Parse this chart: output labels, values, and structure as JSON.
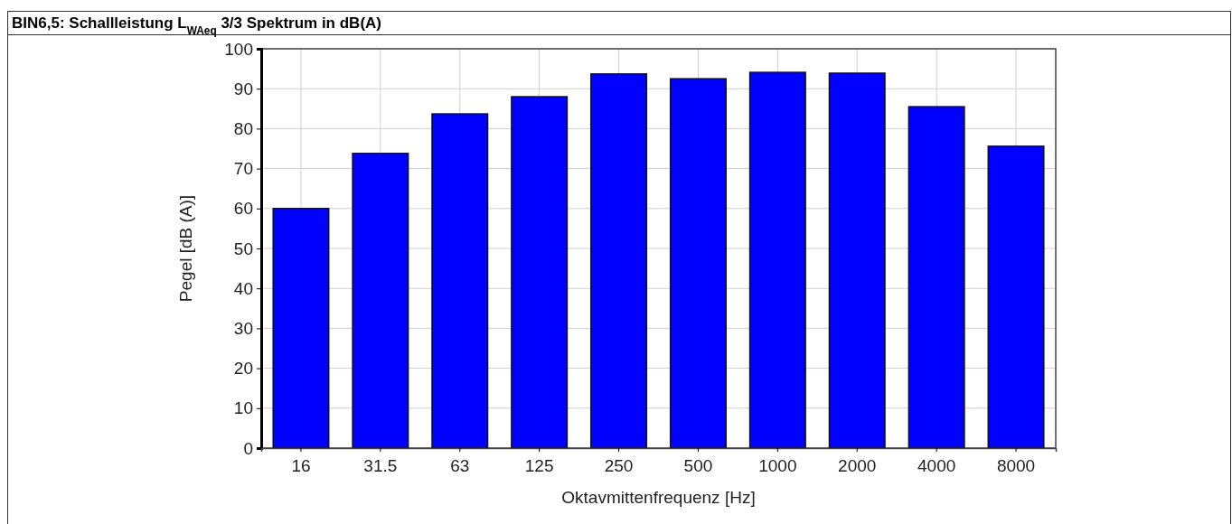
{
  "chart_data": {
    "type": "bar",
    "title": "BIN6,5: Schallleistung L$_{WAeq}$ 3/3 Spektrum in dB(A)",
    "xlabel": "Oktavmittenfrequenz [Hz]",
    "ylabel": "Pegel [dB (A)]",
    "categories": [
      "16",
      "31.5",
      "63",
      "125",
      "250",
      "500",
      "1000",
      "2000",
      "4000",
      "8000"
    ],
    "values": [
      60.0,
      73.8,
      83.7,
      88.0,
      93.7,
      92.5,
      94.1,
      93.9,
      85.5,
      75.6
    ],
    "color": "#0000ff",
    "ylim": [
      0,
      100
    ],
    "yticks": [
      0,
      10,
      20,
      30,
      40,
      50,
      60,
      70,
      80,
      90,
      100
    ],
    "grid": true
  }
}
